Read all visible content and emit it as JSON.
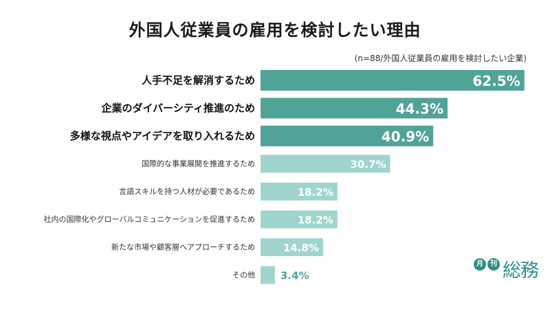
{
  "header": {
    "title": "外国人従業員の雇用を検討したい理由",
    "subtitle": "(n=88/外国人従業員の雇用を検討したい企業)"
  },
  "colors": {
    "top_bar": "#4fa397",
    "other_bar": "#9fd5cc",
    "last_label": "#4fa397"
  },
  "chart_data": {
    "type": "bar",
    "orientation": "horizontal",
    "categories": [
      "人手不足を解消するため",
      "企業のダイバーシティ推進のため",
      "多様な視点やアイデアを取り入れるため",
      "国際的な事業展開を推進するため",
      "言語スキルを持つ人材が必要であるため",
      "社内の国際化やグローバルコミュニケーションを促進するため",
      "新たな市場や顧客層へアプローチするため",
      "その他"
    ],
    "values": [
      62.5,
      44.3,
      40.9,
      30.7,
      18.2,
      18.2,
      14.8,
      3.4
    ],
    "value_labels": [
      "62.5%",
      "44.3%",
      "40.9%",
      "30.7%",
      "18.2%",
      "18.2%",
      "14.8%",
      "3.4%"
    ],
    "unit": "%",
    "highlight_top": 3
  },
  "logo": {
    "badge1": "月",
    "badge2": "刊",
    "word": "総務"
  }
}
